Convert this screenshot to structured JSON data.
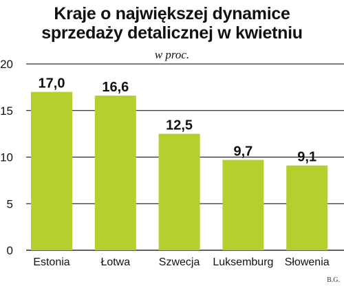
{
  "chart_data": {
    "type": "bar",
    "title": "Kraje o największej dynamice sprzedaży detalicznej w kwietniu",
    "title_lines": [
      "Kraje o największej dynamice",
      "sprzedaży detalicznej w kwietniu"
    ],
    "subtitle": "w proc.",
    "categories": [
      "Estonia",
      "Łotwa",
      "Szwecja",
      "Luksemburg",
      "Słowenia"
    ],
    "values": [
      17.0,
      16.6,
      12.5,
      9.7,
      9.1
    ],
    "value_labels": [
      "17,0",
      "16,6",
      "12,5",
      "9,7",
      "9,1"
    ],
    "ylim": [
      0,
      20
    ],
    "yticks": [
      0,
      5,
      10,
      15,
      20
    ],
    "grid": true,
    "bar_color": "#b6cf2e",
    "credit": "B.G."
  }
}
